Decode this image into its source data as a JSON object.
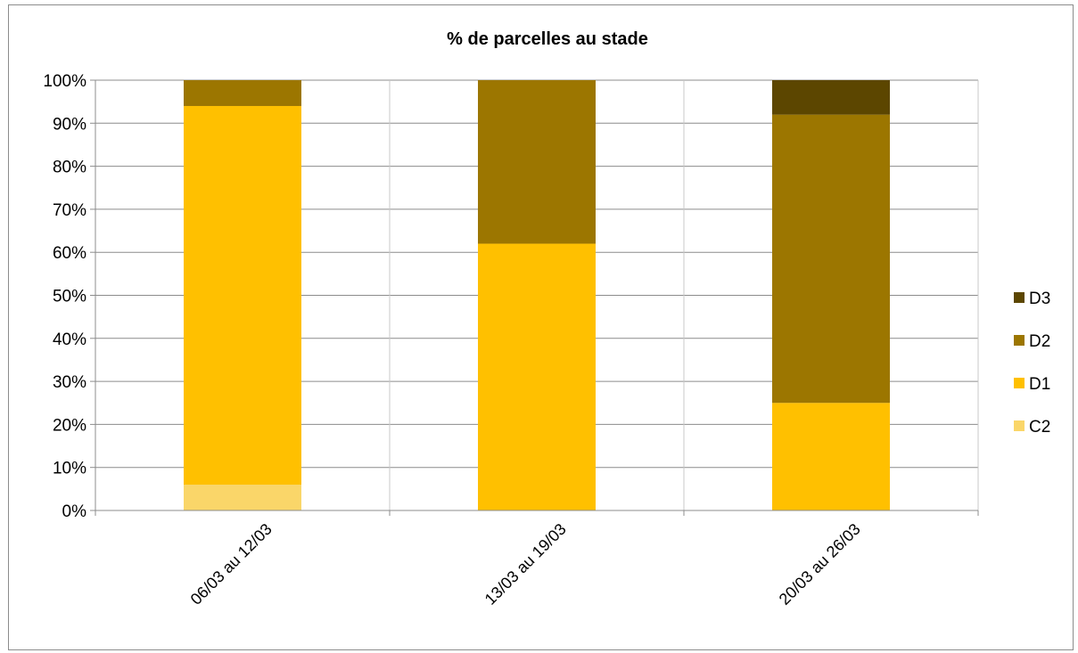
{
  "chart_data": {
    "type": "bar",
    "stacked": true,
    "title": "% de parcelles au stade",
    "xlabel": "",
    "ylabel": "",
    "categories": [
      "06/03 au 12/03",
      "13/03 au 19/03",
      "20/03 au 26/03"
    ],
    "ylim": [
      0,
      100
    ],
    "yticks": [
      0,
      10,
      20,
      30,
      40,
      50,
      60,
      70,
      80,
      90,
      100
    ],
    "ytick_labels": [
      "0%",
      "10%",
      "20%",
      "30%",
      "40%",
      "50%",
      "60%",
      "70%",
      "80%",
      "90%",
      "100%"
    ],
    "grid": true,
    "legend_position": "right",
    "series": [
      {
        "name": "C2",
        "color": "#fad669",
        "values": [
          6,
          0,
          0
        ]
      },
      {
        "name": "D1",
        "color": "#ffc000",
        "values": [
          88,
          62,
          25
        ]
      },
      {
        "name": "D2",
        "color": "#9c7600",
        "values": [
          6,
          38,
          67
        ]
      },
      {
        "name": "D3",
        "color": "#5c4600",
        "values": [
          0,
          0,
          8
        ]
      }
    ]
  }
}
